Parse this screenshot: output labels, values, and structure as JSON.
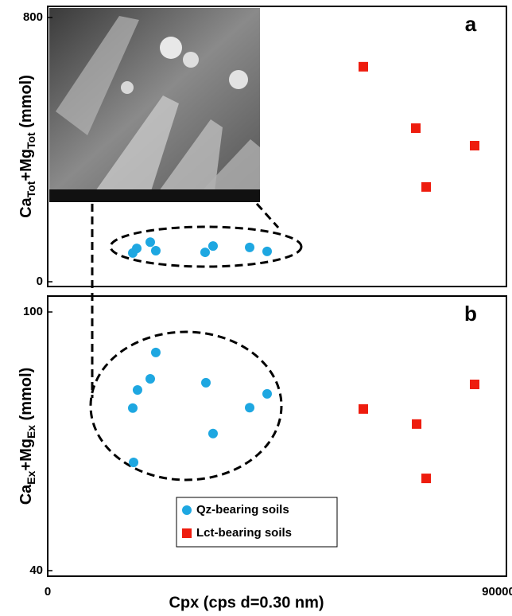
{
  "chart_data": [
    {
      "type": "scatter",
      "panel_label": "a",
      "ylabel": [
        "Ca",
        "Tot",
        "+Mg",
        "Tot",
        " (mmol)"
      ],
      "xlim": [
        0,
        90000
      ],
      "ylim": [
        0,
        800
      ],
      "yticks": [
        0,
        800
      ],
      "series": [
        {
          "name": "Qz-bearing soils",
          "color": "#1ea7e1",
          "marker": "circle",
          "x": [
            16690,
            17470,
            20120,
            21210,
            30880,
            32440,
            39620,
            43050
          ],
          "values": [
            87,
            101,
            120,
            94,
            89,
            108,
            104,
            92
          ]
        },
        {
          "name": "Lct-bearing soils",
          "color": "#ee1c0e",
          "marker": "square",
          "x": [
            61920,
            72220,
            83760,
            74250
          ],
          "values": [
            651,
            465,
            412,
            287
          ]
        }
      ]
    },
    {
      "type": "scatter",
      "panel_label": "b",
      "ylabel": [
        "Ca",
        "Ex",
        "+Mg",
        "Ex",
        " (mmol)"
      ],
      "xlabel": "Cpx (cps d=0.30 nm)",
      "xlim": [
        0,
        90000
      ],
      "xticks": [
        0,
        90000
      ],
      "ylim": [
        40,
        100
      ],
      "yticks": [
        40,
        100
      ],
      "legend": "lower center",
      "series": [
        {
          "name": "Qz-bearing soils",
          "color": "#1ea7e1",
          "marker": "circle",
          "x": [
            16690,
            17620,
            20120,
            21210,
            31040,
            32440,
            39620,
            43050,
            16850
          ],
          "values": [
            77.7,
            81.9,
            84.5,
            90.6,
            83.6,
            71.8,
            77.8,
            81.0,
            65.1
          ]
        },
        {
          "name": "Lct-bearing soils",
          "color": "#ee1c0e",
          "marker": "square",
          "x": [
            61920,
            72380,
            83760,
            74250
          ],
          "values": [
            77.5,
            74.0,
            83.2,
            61.4
          ]
        }
      ]
    }
  ]
}
